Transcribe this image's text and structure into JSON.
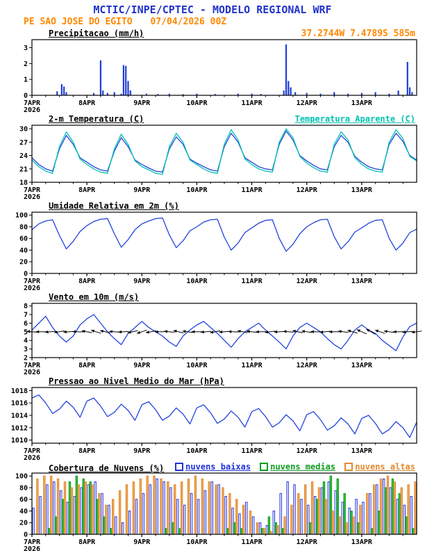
{
  "header": {
    "title": "MCTIC/INPE/CPTEC - MODELO REGIONAL WRF",
    "station_name": "PE SAO JOSE DO EGITO",
    "run_label": "07/04/2026 00Z",
    "coords": "37.2744W 7.4789S 585m",
    "colors": {
      "title": "#2233cc",
      "station": "#ff8800",
      "coords": "#ff8800"
    }
  },
  "axis": {
    "x_hours": 168,
    "x_minor_step": 6,
    "x_major_ticks": [
      {
        "h": 0,
        "label": "7APR",
        "sublabel": "2026"
      },
      {
        "h": 24,
        "label": "8APR"
      },
      {
        "h": 48,
        "label": "9APR"
      },
      {
        "h": 72,
        "label": "10APR"
      },
      {
        "h": 96,
        "label": "11APR"
      },
      {
        "h": 120,
        "label": "12APR"
      },
      {
        "h": 144,
        "label": "13APR"
      }
    ]
  },
  "chart_data": [
    {
      "id": "precipitation",
      "type": "bar",
      "title": "Precipitacao (mm/h)",
      "ylim": [
        0,
        3.5
      ],
      "yticks": [
        0,
        1,
        2,
        3
      ],
      "color": "#1e3ed8",
      "x_unit": "hour",
      "events": [
        [
          11,
          0.25
        ],
        [
          13,
          0.7
        ],
        [
          14,
          0.55
        ],
        [
          15,
          0.2
        ],
        [
          27,
          0.15
        ],
        [
          30,
          2.2
        ],
        [
          31,
          0.3
        ],
        [
          33,
          0.15
        ],
        [
          36,
          0.2
        ],
        [
          39,
          0.1
        ],
        [
          40,
          1.9
        ],
        [
          41,
          1.85
        ],
        [
          42,
          0.9
        ],
        [
          43,
          0.3
        ],
        [
          50,
          0.1
        ],
        [
          55,
          0.08
        ],
        [
          60,
          0.1
        ],
        [
          66,
          0.07
        ],
        [
          72,
          0.1
        ],
        [
          80,
          0.08
        ],
        [
          90,
          0.1
        ],
        [
          96,
          0.1
        ],
        [
          100,
          0.08
        ],
        [
          110,
          0.3
        ],
        [
          111,
          3.2
        ],
        [
          112,
          0.9
        ],
        [
          113,
          0.5
        ],
        [
          115,
          0.2
        ],
        [
          120,
          0.15
        ],
        [
          126,
          0.1
        ],
        [
          132,
          0.2
        ],
        [
          138,
          0.1
        ],
        [
          144,
          0.15
        ],
        [
          150,
          0.2
        ],
        [
          156,
          0.1
        ],
        [
          160,
          0.3
        ],
        [
          164,
          2.1
        ],
        [
          165,
          0.5
        ],
        [
          166,
          0.2
        ]
      ]
    },
    {
      "id": "temperature",
      "type": "line",
      "title": "2-m Temperatura (C)",
      "legend_label": "Temperatura Aparente (C)",
      "ylim": [
        18,
        30.8
      ],
      "yticks": [
        18,
        21,
        24,
        27,
        30
      ],
      "x_step": 3,
      "series": [
        {
          "name": "2-m Temperatura",
          "color": "#2244dd",
          "values": [
            23.5,
            22.0,
            21.0,
            20.5,
            25.5,
            28.5,
            26.5,
            23.5,
            22.5,
            21.5,
            20.8,
            20.5,
            25.0,
            28.0,
            26.0,
            23.0,
            22.0,
            21.2,
            20.5,
            20.3,
            25.5,
            28.2,
            26.5,
            23.2,
            22.3,
            21.5,
            20.8,
            20.5,
            26.0,
            29.0,
            27.0,
            23.5,
            22.5,
            21.5,
            21.0,
            20.8,
            26.5,
            29.5,
            27.5,
            24.0,
            22.8,
            21.8,
            21.0,
            20.8,
            26.0,
            28.5,
            27.0,
            23.8,
            22.5,
            21.5,
            21.0,
            20.8,
            26.5,
            29.0,
            27.2,
            24.0,
            23.0
          ]
        },
        {
          "name": "Temperatura Aparente (C)",
          "color": "#00c2b2",
          "values": [
            23.0,
            21.5,
            20.5,
            20.0,
            26.0,
            29.3,
            27.0,
            23.2,
            22.0,
            21.0,
            20.3,
            20.0,
            25.5,
            28.8,
            26.5,
            22.8,
            21.5,
            20.8,
            20.0,
            19.8,
            26.0,
            29.0,
            27.0,
            23.0,
            22.0,
            21.0,
            20.3,
            20.0,
            26.5,
            29.8,
            27.5,
            23.2,
            22.0,
            21.0,
            20.5,
            20.3,
            27.0,
            30.0,
            28.0,
            23.8,
            22.3,
            21.3,
            20.5,
            20.3,
            26.5,
            29.3,
            27.5,
            23.5,
            22.0,
            21.0,
            20.5,
            20.3,
            27.0,
            29.8,
            27.8,
            23.8,
            22.8
          ]
        }
      ]
    },
    {
      "id": "humidity",
      "type": "line",
      "title": "Umidade Relativa em 2m (%)",
      "ylim": [
        0,
        105
      ],
      "yticks": [
        0,
        20,
        40,
        60,
        80,
        100
      ],
      "x_step": 3,
      "series": [
        {
          "name": "Umidade Relativa",
          "color": "#2244dd",
          "values": [
            75,
            85,
            90,
            92,
            65,
            42,
            55,
            72,
            82,
            89,
            93,
            94,
            68,
            45,
            58,
            75,
            85,
            90,
            94,
            95,
            66,
            44,
            56,
            73,
            80,
            88,
            92,
            93,
            62,
            40,
            52,
            70,
            78,
            86,
            91,
            92,
            60,
            38,
            50,
            68,
            80,
            87,
            92,
            93,
            63,
            42,
            54,
            71,
            78,
            86,
            91,
            92,
            60,
            40,
            52,
            70,
            76
          ]
        }
      ]
    },
    {
      "id": "wind",
      "type": "line",
      "title": "Vento em 10m (m/s)",
      "ylim": [
        2,
        8.3
      ],
      "yticks": [
        2,
        3,
        4,
        5,
        6,
        7,
        8
      ],
      "x_step": 3,
      "series": [
        {
          "name": "Velocidade do Vento",
          "color": "#2244dd",
          "values": [
            5.2,
            6.0,
            6.8,
            5.5,
            4.5,
            3.8,
            4.5,
            5.8,
            6.5,
            7.0,
            6.0,
            5.0,
            4.2,
            3.5,
            4.8,
            5.5,
            6.2,
            5.5,
            5.0,
            4.5,
            3.8,
            3.3,
            4.5,
            5.2,
            5.8,
            6.2,
            5.5,
            4.8,
            4.0,
            3.2,
            4.2,
            5.0,
            5.5,
            6.0,
            5.2,
            4.5,
            3.8,
            3.0,
            4.5,
            5.5,
            6.0,
            5.5,
            5.0,
            4.2,
            3.5,
            3.0,
            4.0,
            5.2,
            5.8,
            5.2,
            4.8,
            4.0,
            3.4,
            2.8,
            4.4,
            5.6,
            6.0
          ]
        }
      ],
      "arrows": {
        "step": 4,
        "y_center": 5,
        "color": "#000000",
        "angles_deg": [
          185,
          180,
          175,
          170,
          176,
          182,
          190,
          198,
          192,
          184,
          176,
          168,
          162,
          170,
          178,
          186,
          194,
          188,
          180,
          174,
          169,
          175,
          183,
          191,
          186,
          179,
          172,
          177,
          185,
          193,
          188,
          181,
          174,
          179,
          187,
          196,
          204,
          210,
          198,
          188,
          180,
          175,
          172
        ]
      }
    },
    {
      "id": "pressure",
      "type": "line",
      "title": "Pressao ao Nivel Medio do Mar (hPa)",
      "ylim": [
        1009.5,
        1018.5
      ],
      "yticks": [
        1010,
        1012,
        1014,
        1016,
        1018
      ],
      "x_step": 3,
      "series": [
        {
          "name": "Pressao ao Nivel Medio do Mar",
          "color": "#2244dd",
          "values": [
            1016.8,
            1017.3,
            1016.0,
            1014.3,
            1015.0,
            1016.3,
            1015.3,
            1013.7,
            1016.3,
            1016.8,
            1015.5,
            1013.8,
            1014.5,
            1015.8,
            1014.8,
            1013.2,
            1015.7,
            1016.2,
            1014.9,
            1013.2,
            1013.9,
            1015.2,
            1014.2,
            1012.6,
            1015.2,
            1015.7,
            1014.4,
            1012.7,
            1013.4,
            1014.7,
            1013.7,
            1012.1,
            1014.6,
            1015.1,
            1013.8,
            1012.1,
            1012.8,
            1014.1,
            1013.1,
            1011.5,
            1014.1,
            1014.6,
            1013.3,
            1011.6,
            1012.3,
            1013.6,
            1012.6,
            1011.0,
            1013.5,
            1014.0,
            1012.7,
            1011.0,
            1011.7,
            1013.0,
            1012.0,
            1010.4,
            1012.9
          ]
        }
      ]
    },
    {
      "id": "clouds",
      "type": "grouped-bars",
      "title": "Cobertura de Nuvens (%)",
      "ylim": [
        0,
        105
      ],
      "yticks": [
        0,
        20,
        40,
        60,
        80,
        100
      ],
      "x_step": 3,
      "series": [
        {
          "name": "nuvens baixas",
          "color": "#2233dd",
          "fill": "none",
          "values": [
            45,
            65,
            85,
            90,
            75,
            55,
            65,
            80,
            85,
            90,
            70,
            50,
            30,
            20,
            40,
            60,
            70,
            85,
            95,
            90,
            80,
            60,
            50,
            70,
            60,
            75,
            90,
            85,
            65,
            45,
            35,
            55,
            30,
            20,
            15,
            40,
            70,
            90,
            85,
            60,
            50,
            65,
            80,
            90,
            75,
            55,
            45,
            60,
            55,
            70,
            85,
            95,
            80,
            60,
            50,
            65
          ]
        },
        {
          "name": "nuvens medias",
          "color": "#0f9d1f",
          "fill": "#35c53f",
          "values": [
            0,
            0,
            10,
            30,
            60,
            90,
            100,
            95,
            90,
            60,
            30,
            10,
            0,
            0,
            0,
            0,
            0,
            0,
            0,
            10,
            20,
            10,
            0,
            0,
            0,
            0,
            0,
            0,
            10,
            20,
            10,
            0,
            0,
            10,
            30,
            20,
            10,
            0,
            0,
            0,
            20,
            60,
            90,
            100,
            95,
            70,
            40,
            20,
            0,
            10,
            40,
            80,
            95,
            70,
            30,
            10
          ]
        },
        {
          "name": "nuvens altas",
          "color": "#e08a2e",
          "fill": "#f2a85c",
          "values": [
            95,
            100,
            100,
            95,
            90,
            80,
            85,
            90,
            85,
            70,
            50,
            60,
            75,
            85,
            90,
            95,
            100,
            100,
            95,
            90,
            85,
            90,
            95,
            100,
            95,
            90,
            85,
            80,
            70,
            60,
            50,
            40,
            20,
            10,
            5,
            15,
            30,
            50,
            70,
            85,
            90,
            80,
            60,
            40,
            30,
            20,
            30,
            50,
            70,
            85,
            95,
            100,
            90,
            80,
            85,
            90
          ]
        }
      ]
    }
  ]
}
